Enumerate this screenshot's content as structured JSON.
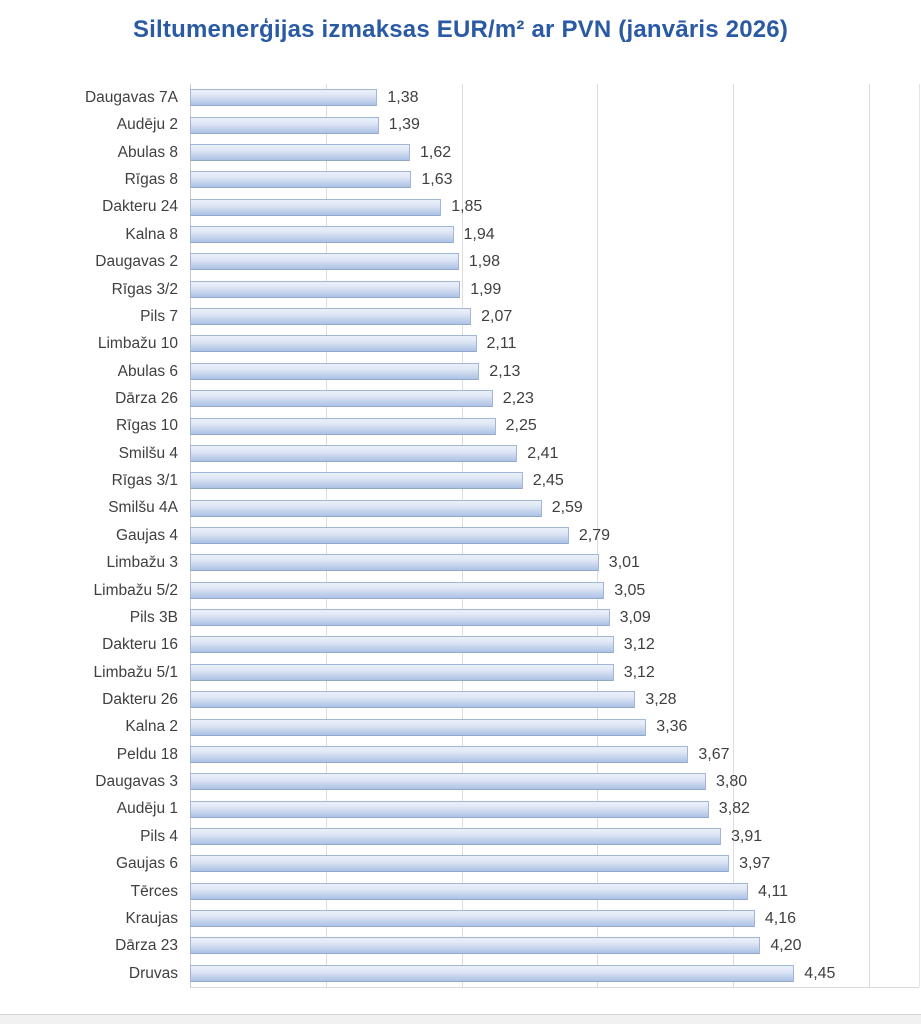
{
  "chart_data": {
    "type": "bar",
    "orientation": "horizontal",
    "title": "Siltumenerģijas izmaksas EUR/m² ar PVN (janvāris 2026)",
    "categories": [
      "Daugavas 7A",
      "Audēju 2",
      "Abulas 8",
      "Rīgas 8",
      "Dakteru 24",
      "Kalna 8",
      "Daugavas 2",
      "Rīgas 3/2",
      "Pils 7",
      "Limbažu 10",
      "Abulas 6",
      "Dārza 26",
      "Rīgas 10",
      "Smilšu 4",
      "Rīgas 3/1",
      "Smilšu 4A",
      "Gaujas 4",
      "Limbažu 3",
      "Limbažu 5/2",
      "Pils 3B",
      "Dakteru 16",
      "Limbažu 5/1",
      "Dakteru 26",
      "Kalna 2",
      "Peldu 18",
      "Daugavas 3",
      "Audēju 1",
      "Pils 4",
      "Gaujas 6",
      "Tērces",
      "Kraujas",
      "Dārza 23",
      "Druvas"
    ],
    "values": [
      1.38,
      1.39,
      1.62,
      1.63,
      1.85,
      1.94,
      1.98,
      1.99,
      2.07,
      2.11,
      2.13,
      2.23,
      2.25,
      2.41,
      2.45,
      2.59,
      2.79,
      3.01,
      3.05,
      3.09,
      3.12,
      3.12,
      3.28,
      3.36,
      3.67,
      3.8,
      3.82,
      3.91,
      3.97,
      4.11,
      4.16,
      4.2,
      4.45
    ],
    "value_labels": [
      "1,38",
      "1,39",
      "1,62",
      "1,63",
      "1,85",
      "1,94",
      "1,98",
      "1,99",
      "2,07",
      "2,11",
      "2,13",
      "2,23",
      "2,25",
      "2,41",
      "2,45",
      "2,59",
      "2,79",
      "3,01",
      "3,05",
      "3,09",
      "3,12",
      "3,12",
      "3,28",
      "3,36",
      "3,67",
      "3,80",
      "3,82",
      "3,91",
      "3,97",
      "4,11",
      "4,16",
      "4,20",
      "4,45"
    ],
    "xlabel": "",
    "ylabel": "",
    "xlim": [
      0,
      5
    ],
    "gridline_values": [
      1,
      2,
      3,
      4,
      5
    ],
    "grid": true,
    "legend": "none",
    "decimal_separator": ",",
    "colors": {
      "title": "#2a5aa4",
      "bar_fill_light": "#eaf0f9",
      "bar_fill_dark": "#adc2e6",
      "bar_border": "#a3b6d6",
      "gridline": "#dcdcdc",
      "axis_line": "#c9c9c9",
      "label_text": "#404040"
    }
  }
}
